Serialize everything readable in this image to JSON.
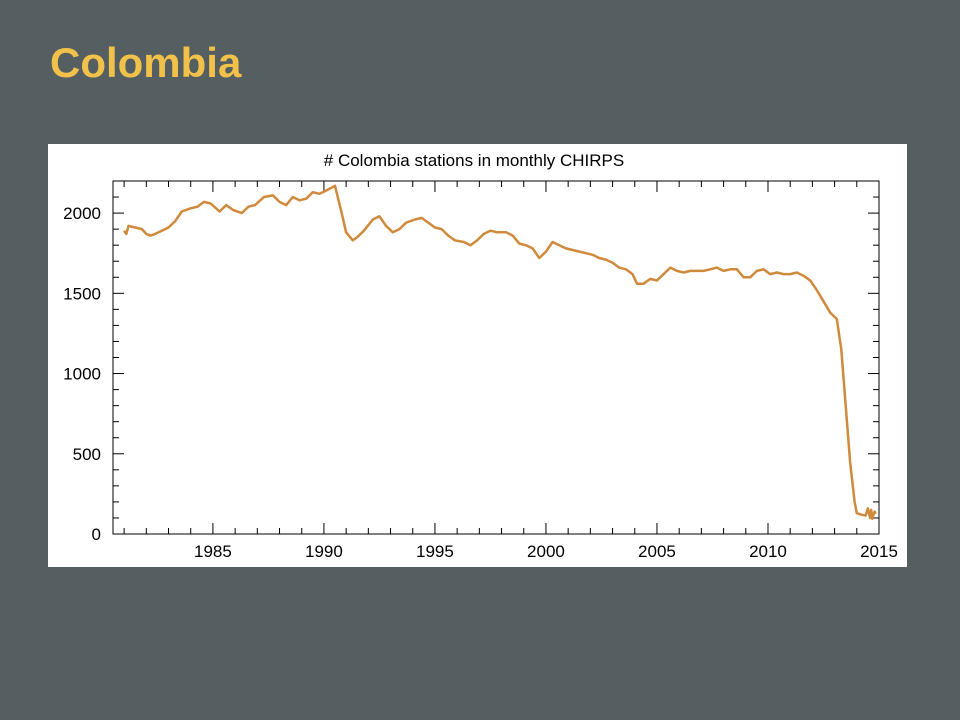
{
  "slide": {
    "title": "Colombia"
  },
  "colors": {
    "background": "#555f61",
    "title": "#f2c14a",
    "series_line": "#d08a3c"
  },
  "chart_data": {
    "type": "line",
    "title": "# Colombia stations in monthly CHIRPS",
    "xlabel": "",
    "ylabel": "",
    "xlim": [
      1980.5,
      2015
    ],
    "ylim": [
      0,
      2200
    ],
    "x_ticks": [
      1985,
      1990,
      1995,
      2000,
      2005,
      2010,
      2015
    ],
    "y_ticks": [
      0,
      500,
      1000,
      1500,
      2000
    ],
    "grid": false,
    "legend": "none",
    "series": [
      {
        "x": [
          1981.0,
          1981.1,
          1981.2,
          1981.5,
          1981.8,
          1982.0,
          1982.2,
          1982.4,
          1982.7,
          1983.0,
          1983.3,
          1983.6,
          1984.0,
          1984.3,
          1984.6,
          1984.9,
          1985.3,
          1985.6,
          1985.9,
          1986.3,
          1986.6,
          1986.9,
          1987.3,
          1987.7,
          1988.0,
          1988.3,
          1988.6,
          1988.9,
          1989.2,
          1989.5,
          1989.8,
          1990.1,
          1990.5,
          1990.8,
          1991.0,
          1991.3,
          1991.5,
          1991.8,
          1992.2,
          1992.5,
          1992.8,
          1993.1,
          1993.4,
          1993.7,
          1994.1,
          1994.4,
          1994.7,
          1995.0,
          1995.3,
          1995.6,
          1995.9,
          1996.3,
          1996.6,
          1996.9,
          1997.2,
          1997.5,
          1997.8,
          1998.2,
          1998.5,
          1998.8,
          1999.1,
          1999.4,
          1999.7,
          2000.0,
          2000.3,
          2000.6,
          2000.9,
          2001.2,
          2001.5,
          2001.8,
          2002.1,
          2002.4,
          2002.7,
          2003.0,
          2003.3,
          2003.6,
          2003.9,
          2004.1,
          2004.4,
          2004.7,
          2005.0,
          2005.3,
          2005.6,
          2005.9,
          2006.2,
          2006.5,
          2006.8,
          2007.1,
          2007.4,
          2007.7,
          2008.0,
          2008.3,
          2008.6,
          2008.9,
          2009.2,
          2009.5,
          2009.8,
          2010.1,
          2010.4,
          2010.7,
          2011.0,
          2011.3,
          2011.6,
          2011.9,
          2012.2,
          2012.5,
          2012.8,
          2013.1,
          2013.3,
          2013.5,
          2013.7,
          2013.9,
          2014.0,
          2014.2,
          2014.4,
          2014.5,
          2014.6,
          2014.65,
          2014.7,
          2014.75,
          2014.8,
          2014.85
        ],
        "values": [
          1890,
          1870,
          1920,
          1910,
          1900,
          1870,
          1860,
          1870,
          1890,
          1910,
          1950,
          2010,
          2030,
          2040,
          2070,
          2060,
          2010,
          2050,
          2020,
          2000,
          2040,
          2050,
          2100,
          2110,
          2070,
          2050,
          2100,
          2080,
          2090,
          2130,
          2120,
          2140,
          2170,
          2000,
          1880,
          1830,
          1850,
          1890,
          1960,
          1980,
          1920,
          1880,
          1900,
          1940,
          1960,
          1970,
          1940,
          1910,
          1900,
          1860,
          1830,
          1820,
          1800,
          1830,
          1870,
          1890,
          1880,
          1880,
          1860,
          1810,
          1800,
          1780,
          1720,
          1760,
          1820,
          1800,
          1780,
          1770,
          1760,
          1750,
          1740,
          1720,
          1710,
          1690,
          1660,
          1650,
          1620,
          1560,
          1560,
          1590,
          1580,
          1620,
          1660,
          1640,
          1630,
          1640,
          1640,
          1640,
          1650,
          1660,
          1640,
          1650,
          1650,
          1600,
          1600,
          1640,
          1650,
          1620,
          1630,
          1620,
          1620,
          1630,
          1610,
          1580,
          1520,
          1450,
          1380,
          1340,
          1150,
          800,
          450,
          200,
          130,
          120,
          115,
          160,
          100,
          150,
          95,
          120,
          140,
          125
        ]
      }
    ]
  }
}
